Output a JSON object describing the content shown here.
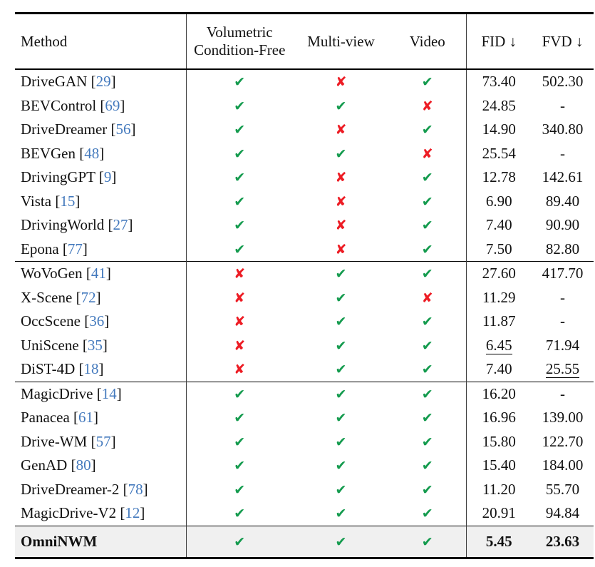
{
  "table": {
    "columns": {
      "method": "Method",
      "vcf_line1": "Volumetric",
      "vcf_line2": "Condition-Free",
      "multiview": "Multi-view",
      "video": "Video",
      "fid": "FID ↓",
      "fvd": "FVD ↓"
    },
    "groups": [
      {
        "rows": [
          {
            "method": "DriveGAN",
            "cite": "29",
            "vcf": "check",
            "mv": "cross",
            "video": "check",
            "fid": "73.40",
            "fvd": "502.30"
          },
          {
            "method": "BEVControl",
            "cite": "69",
            "vcf": "check",
            "mv": "check",
            "video": "cross",
            "fid": "24.85",
            "fvd": "-"
          },
          {
            "method": "DriveDreamer",
            "cite": "56",
            "vcf": "check",
            "mv": "cross",
            "video": "check",
            "fid": "14.90",
            "fvd": "340.80"
          },
          {
            "method": "BEVGen",
            "cite": "48",
            "vcf": "check",
            "mv": "check",
            "video": "cross",
            "fid": "25.54",
            "fvd": "-"
          },
          {
            "method": "DrivingGPT",
            "cite": "9",
            "vcf": "check",
            "mv": "cross",
            "video": "check",
            "fid": "12.78",
            "fvd": "142.61"
          },
          {
            "method": "Vista",
            "cite": "15",
            "vcf": "check",
            "mv": "cross",
            "video": "check",
            "fid": "6.90",
            "fvd": "89.40"
          },
          {
            "method": "DrivingWorld",
            "cite": "27",
            "vcf": "check",
            "mv": "cross",
            "video": "check",
            "fid": "7.40",
            "fvd": "90.90"
          },
          {
            "method": "Epona",
            "cite": "77",
            "vcf": "check",
            "mv": "cross",
            "video": "check",
            "fid": "7.50",
            "fvd": "82.80"
          }
        ]
      },
      {
        "rows": [
          {
            "method": "WoVoGen",
            "cite": "41",
            "vcf": "cross",
            "mv": "check",
            "video": "check",
            "fid": "27.60",
            "fvd": "417.70"
          },
          {
            "method": "X-Scene",
            "cite": "72",
            "vcf": "cross",
            "mv": "check",
            "video": "cross",
            "fid": "11.29",
            "fvd": "-"
          },
          {
            "method": "OccScene",
            "cite": "36",
            "vcf": "cross",
            "mv": "check",
            "video": "check",
            "fid": "11.87",
            "fvd": "-"
          },
          {
            "method": "UniScene",
            "cite": "35",
            "vcf": "cross",
            "mv": "check",
            "video": "check",
            "fid": "6.45",
            "fvd": "71.94",
            "fid_underline": true
          },
          {
            "method": "DiST-4D",
            "cite": "18",
            "vcf": "cross",
            "mv": "check",
            "video": "check",
            "fid": "7.40",
            "fvd": "25.55",
            "fvd_underline": true
          }
        ]
      },
      {
        "rows": [
          {
            "method": "MagicDrive",
            "cite": "14",
            "vcf": "check",
            "mv": "check",
            "video": "check",
            "fid": "16.20",
            "fvd": "-"
          },
          {
            "method": "Panacea",
            "cite": "61",
            "vcf": "check",
            "mv": "check",
            "video": "check",
            "fid": "16.96",
            "fvd": "139.00"
          },
          {
            "method": "Drive-WM",
            "cite": "57",
            "vcf": "check",
            "mv": "check",
            "video": "check",
            "fid": "15.80",
            "fvd": "122.70"
          },
          {
            "method": "GenAD",
            "cite": "80",
            "vcf": "check",
            "mv": "check",
            "video": "check",
            "fid": "15.40",
            "fvd": "184.00"
          },
          {
            "method": "DriveDreamer-2",
            "cite": "78",
            "vcf": "check",
            "mv": "check",
            "video": "check",
            "fid": "11.20",
            "fvd": "55.70"
          },
          {
            "method": "MagicDrive-V2",
            "cite": "12",
            "vcf": "check",
            "mv": "check",
            "video": "check",
            "fid": "20.91",
            "fvd": "94.84"
          }
        ]
      }
    ],
    "final_row": {
      "method": "OmniNWM",
      "cite": null,
      "vcf": "check",
      "mv": "check",
      "video": "check",
      "fid": "5.45",
      "fvd": "23.63",
      "bold": true
    }
  },
  "icons": {
    "check": "✔",
    "cross": "✘"
  },
  "colors": {
    "check_green": "#149b4e",
    "cross_red": "#ed1c24",
    "citation_blue": "#4379bd",
    "highlight_row_bg": "#f0f0f0",
    "rule_black": "#000000"
  }
}
